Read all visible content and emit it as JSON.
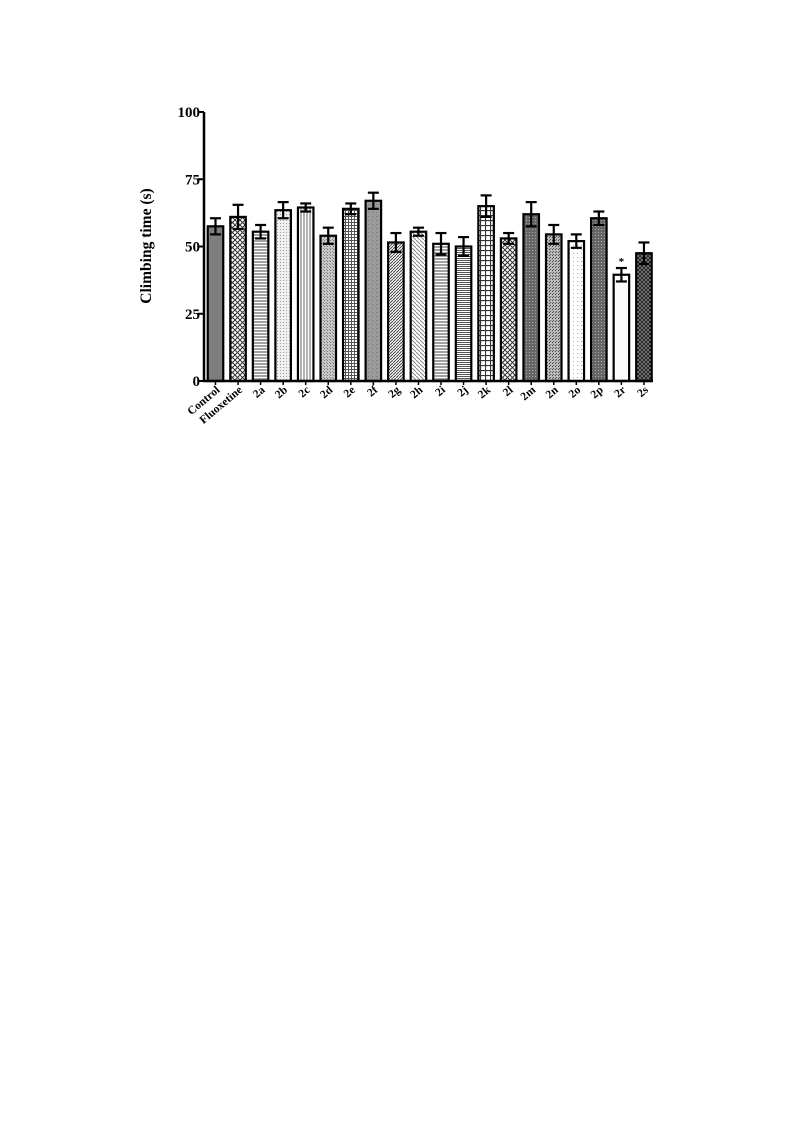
{
  "chart_data": {
    "type": "bar",
    "ylabel": "Climbing time (s)",
    "xlabel": "",
    "ylim": [
      0,
      100
    ],
    "yticks": [
      "0",
      "25",
      "50",
      "75",
      "100"
    ],
    "categories": [
      "Control",
      "Fluoxetine",
      "2a",
      "2b",
      "2c",
      "2d",
      "2e",
      "2f",
      "2g",
      "2h",
      "2i",
      "2j",
      "2k",
      "2l",
      "2m",
      "2n",
      "2o",
      "2p",
      "2r",
      "2s"
    ],
    "values": [
      57.5,
      61,
      55.5,
      63.5,
      64.5,
      54,
      64,
      67,
      51.5,
      55.5,
      51,
      50,
      65,
      53,
      62,
      54.5,
      52,
      60.5,
      39.5,
      47.5
    ],
    "errors": [
      3,
      4.5,
      2.5,
      3,
      1.5,
      3,
      2,
      3,
      3.5,
      1.5,
      4,
      3.5,
      4,
      2,
      4.5,
      3.5,
      2.5,
      2.5,
      2.5,
      4
    ],
    "patterns": [
      "solid-dark",
      "crosshatch",
      "hlines",
      "dots",
      "vlines",
      "stipple",
      "grid-fine",
      "solid-mid",
      "diag-dense",
      "diag-light",
      "hlines",
      "hlines-dense",
      "grid-large",
      "crosshatch",
      "dark-dense",
      "stipple-dark",
      "dots-light",
      "dark-dense",
      "blank",
      "crosshatch-dark"
    ],
    "significance": [
      {
        "category": "2r",
        "label": "*"
      }
    ],
    "grid": false,
    "legend": "none"
  }
}
